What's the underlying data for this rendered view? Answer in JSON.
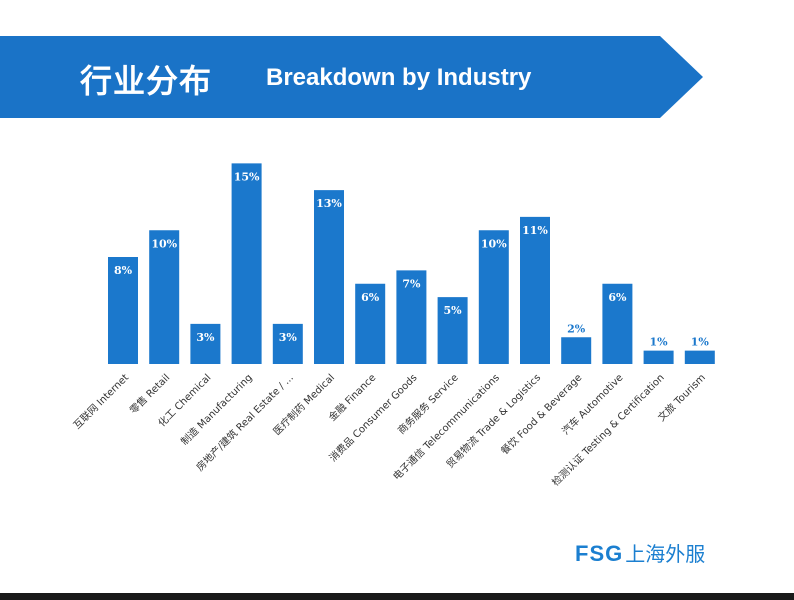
{
  "header": {
    "title_cn": "行业分布",
    "title_en": "Breakdown by Industry"
  },
  "logo": {
    "brand": "FSG",
    "brand_cn": "上海外服"
  },
  "colors": {
    "banner": "#1a73c7",
    "bar": "#1b78cc",
    "bar_label": "#ffffff",
    "outside_label": "#1b78cc",
    "axis_label": "#333333"
  },
  "chart_data": {
    "type": "bar",
    "categories": [
      "互联网 Internet",
      "零售 Retail",
      "化工 Chemical",
      "制造 Manufacturing",
      "房地产/建筑 Real Estate / ...",
      "医疗制药 Medical",
      "金融 Finance",
      "消费品 Consumer Goods",
      "商务服务 Service",
      "电子通信 Telecommunications",
      "贸易物流 Trade & Logistics",
      "餐饮 Food & Beverage",
      "汽车 Automotive",
      "检测认证 Testing & Certification",
      "文旅 Tourism"
    ],
    "values": [
      8,
      10,
      3,
      15,
      3,
      13,
      6,
      7,
      5,
      10,
      11,
      2,
      6,
      1,
      1
    ],
    "value_labels": [
      "8%",
      "10%",
      "3%",
      "15%",
      "3%",
      "13%",
      "6%",
      "7%",
      "5%",
      "10%",
      "11%",
      "2%",
      "6%",
      "1%",
      "1%"
    ],
    "ylim": [
      0,
      16
    ],
    "grid": false,
    "legend": "none"
  }
}
